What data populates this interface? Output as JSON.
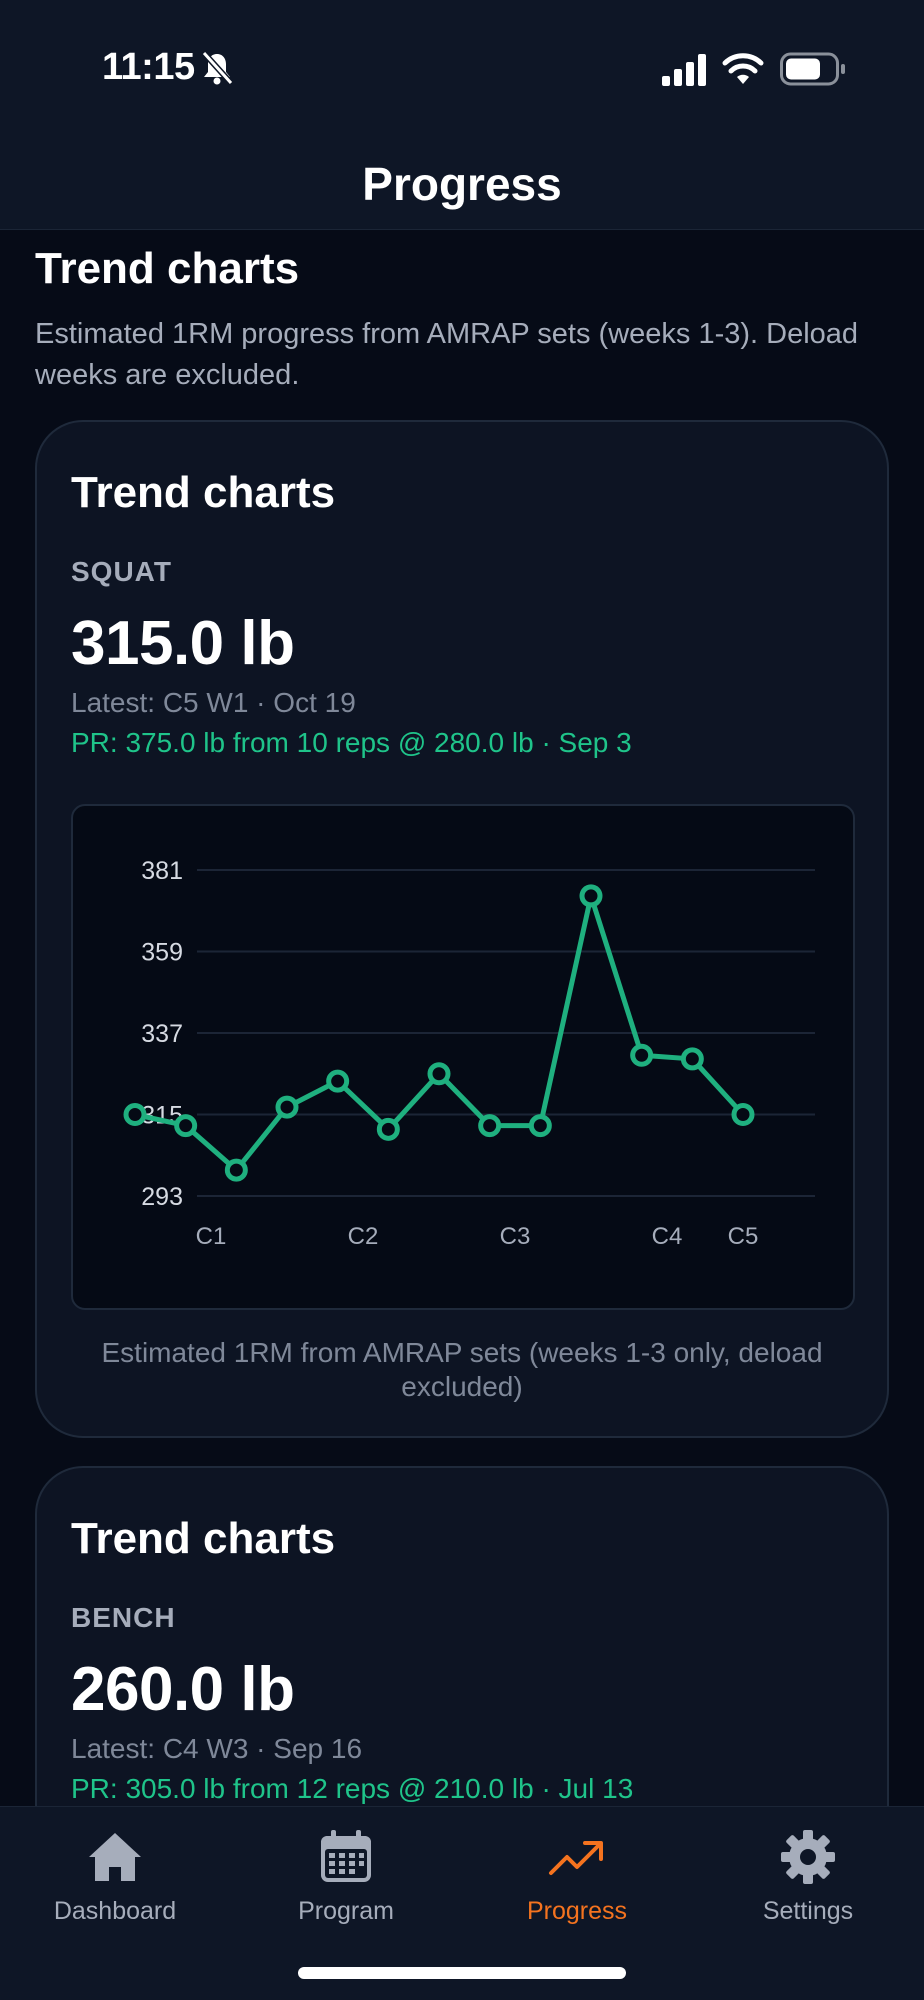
{
  "status_bar": {
    "time": "11:15"
  },
  "header": {
    "title": "Progress"
  },
  "intro": {
    "title": "Trend charts",
    "subtitle": "Estimated 1RM progress from AMRAP sets (weeks 1-3). Deload weeks are excluded."
  },
  "cards": [
    {
      "title": "Trend charts",
      "lift": "SQUAT",
      "value": "315.0 lb",
      "latest": "Latest: C5 W1 · Oct 19",
      "pr": "PR: 375.0 lb from 10 reps @ 280.0 lb · Sep 3",
      "caption": "Estimated 1RM from AMRAP sets (weeks 1-3 only, deload excluded)"
    },
    {
      "title": "Trend charts",
      "lift": "BENCH",
      "value": "260.0 lb",
      "latest": "Latest: C4 W3 · Sep 16",
      "pr": "PR: 305.0 lb from 12 reps @ 210.0 lb · Jul 13"
    }
  ],
  "chart_data": {
    "type": "line",
    "title": "",
    "xlabel": "",
    "ylabel": "",
    "yticks": [
      293,
      315,
      337,
      359,
      381
    ],
    "ylim": [
      293,
      381
    ],
    "xtick_labels": [
      "C1",
      "C2",
      "C3",
      "C4",
      "C5"
    ],
    "xtick_positions": [
      1.5,
      4.5,
      7.5,
      10.5,
      12
    ],
    "grid": true,
    "series": [
      {
        "color": "#1fb07f",
        "x": [
          0,
          1,
          2,
          3,
          4,
          5,
          6,
          7,
          8,
          9,
          10,
          11,
          12
        ],
        "y": [
          315,
          312,
          300,
          317,
          324,
          311,
          326,
          312,
          312,
          374,
          331,
          330,
          315
        ]
      }
    ]
  },
  "tabs": [
    {
      "label": "Dashboard",
      "icon": "home-icon"
    },
    {
      "label": "Program",
      "icon": "calendar-icon"
    },
    {
      "label": "Progress",
      "icon": "trend-icon",
      "active": true
    },
    {
      "label": "Settings",
      "icon": "gear-icon"
    }
  ],
  "colors": {
    "accent": "#f4731f",
    "positive": "#1fc48a",
    "background": "#060b17",
    "card": "#0d1423"
  }
}
